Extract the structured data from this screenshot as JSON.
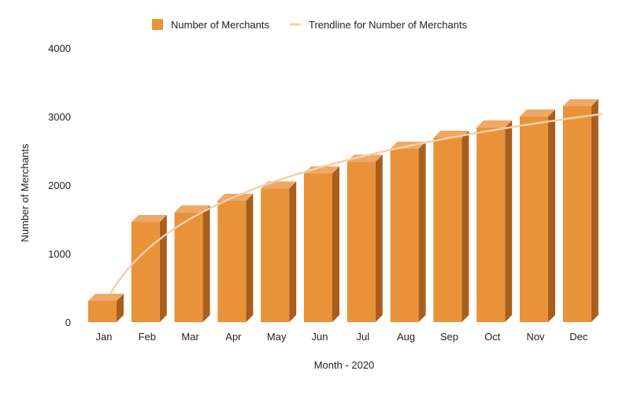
{
  "chart_data": {
    "type": "bar",
    "categories": [
      "Jan",
      "Feb",
      "Mar",
      "Apr",
      "May",
      "Jun",
      "Jul",
      "Aug",
      "Sep",
      "Oct",
      "Nov",
      "Dec"
    ],
    "series": [
      {
        "name": "Number of Merchants",
        "values": [
          310,
          1460,
          1600,
          1770,
          1950,
          2170,
          2340,
          2530,
          2690,
          2840,
          3000,
          3150
        ],
        "color": "#E8923A"
      }
    ],
    "trendline": {
      "name": "Trendline for Number of Merchants",
      "type": "logarithmic",
      "color": "#F5CFA6"
    },
    "xlabel": "Month - 2020",
    "ylabel": "Number of Merchants",
    "ylim": [
      0,
      4000
    ],
    "yticks": [
      0,
      1000,
      2000,
      3000,
      4000
    ],
    "legend_position": "top-center",
    "grid": false
  }
}
